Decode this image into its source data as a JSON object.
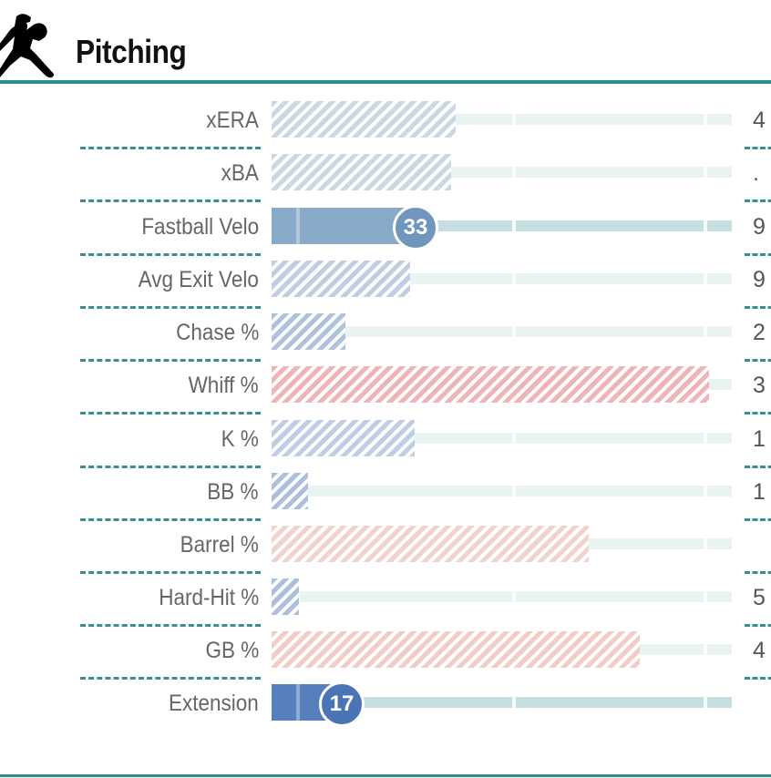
{
  "header": {
    "title": "Pitching",
    "icon": "pitcher-silhouette-icon"
  },
  "colors": {
    "accent": "#2e8b8b",
    "good_dark": "#4f7bb8",
    "good_mid": "#88a9c7",
    "good_light": "#c5d4e6",
    "bad_light": "#f0bcbc",
    "bad_faint": "#f1d6d2",
    "track": "#e8f3f2",
    "track_solid": "#c5dfe0"
  },
  "metrics": [
    {
      "label": "xERA",
      "percentile": 40,
      "value": "4",
      "style": "hatch",
      "color": "#c8d5e3",
      "ranked": false
    },
    {
      "label": "xBA",
      "percentile": 39,
      "value": ".",
      "style": "hatch",
      "color": "#c8d5e3",
      "ranked": false
    },
    {
      "label": "Fastball Velo",
      "percentile": 33,
      "value": "9",
      "style": "solid",
      "color": "#88a9c7",
      "ranked": true,
      "rank_label": "33"
    },
    {
      "label": "Avg Exit Velo",
      "percentile": 30,
      "value": "9",
      "style": "hatch",
      "color": "#bccbe2",
      "ranked": false
    },
    {
      "label": "Chase %",
      "percentile": 16,
      "value": "2",
      "style": "hatch",
      "color": "#aabfdc",
      "ranked": false
    },
    {
      "label": "Whiff %",
      "percentile": 95,
      "value": "3",
      "style": "hatch",
      "color": "#eeb0b2",
      "ranked": false
    },
    {
      "label": "K %",
      "percentile": 31,
      "value": "1",
      "style": "hatch",
      "color": "#bccbe2",
      "ranked": false
    },
    {
      "label": "BB %",
      "percentile": 8,
      "value": "1",
      "style": "hatch",
      "color": "#a7bcdb",
      "ranked": false
    },
    {
      "label": "Barrel %",
      "percentile": 69,
      "value": "",
      "style": "hatch",
      "color": "#f0d0cc",
      "ranked": false
    },
    {
      "label": "Hard-Hit %",
      "percentile": 6,
      "value": "5",
      "style": "hatch",
      "color": "#a7bcdb",
      "ranked": false
    },
    {
      "label": "GB %",
      "percentile": 80,
      "value": "4",
      "style": "hatch",
      "color": "#f2c8c4",
      "ranked": false
    },
    {
      "label": "Extension",
      "percentile": 17,
      "value": "",
      "style": "solid",
      "color": "#5680bd",
      "ranked": true,
      "rank_label": "17"
    }
  ]
}
